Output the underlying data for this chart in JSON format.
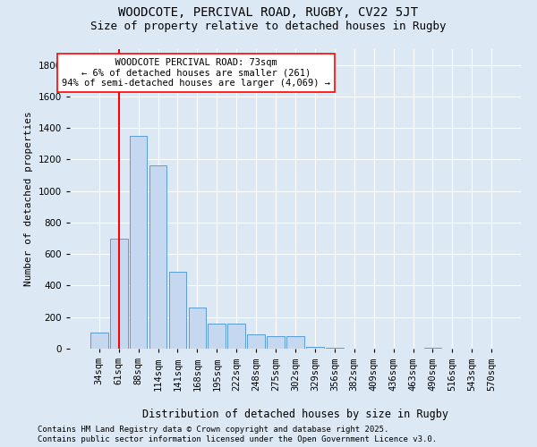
{
  "title1": "WOODCOTE, PERCIVAL ROAD, RUGBY, CV22 5JT",
  "title2": "Size of property relative to detached houses in Rugby",
  "xlabel": "Distribution of detached houses by size in Rugby",
  "ylabel": "Number of detached properties",
  "categories": [
    "34sqm",
    "61sqm",
    "88sqm",
    "114sqm",
    "141sqm",
    "168sqm",
    "195sqm",
    "222sqm",
    "248sqm",
    "275sqm",
    "302sqm",
    "329sqm",
    "356sqm",
    "382sqm",
    "409sqm",
    "436sqm",
    "463sqm",
    "490sqm",
    "516sqm",
    "543sqm",
    "570sqm"
  ],
  "values": [
    100,
    700,
    1350,
    1160,
    490,
    260,
    160,
    160,
    90,
    80,
    80,
    10,
    5,
    2,
    0,
    0,
    0,
    3,
    0,
    0,
    0
  ],
  "bar_color": "#c5d8f0",
  "bar_edge_color": "#5b9bd5",
  "vline_x_index": 1,
  "vline_color": "red",
  "vline_linewidth": 1.5,
  "annotation_text": "  WOODCOTE PERCIVAL ROAD: 73sqm  \n← 6% of detached houses are smaller (261)\n94% of semi-detached houses are larger (4,069) →",
  "annotation_box_color": "white",
  "annotation_box_edge": "red",
  "ylim": [
    0,
    1900
  ],
  "yticks": [
    0,
    200,
    400,
    600,
    800,
    1000,
    1200,
    1400,
    1600,
    1800
  ],
  "background_color": "#dce9f5",
  "plot_bg_color": "#dce9f5",
  "grid_color": "white",
  "footer1": "Contains HM Land Registry data © Crown copyright and database right 2025.",
  "footer2": "Contains public sector information licensed under the Open Government Licence v3.0.",
  "title1_fontsize": 10,
  "title2_fontsize": 9,
  "xlabel_fontsize": 8.5,
  "ylabel_fontsize": 8,
  "tick_fontsize": 7.5,
  "annotation_fontsize": 7.5,
  "footer_fontsize": 6.5
}
